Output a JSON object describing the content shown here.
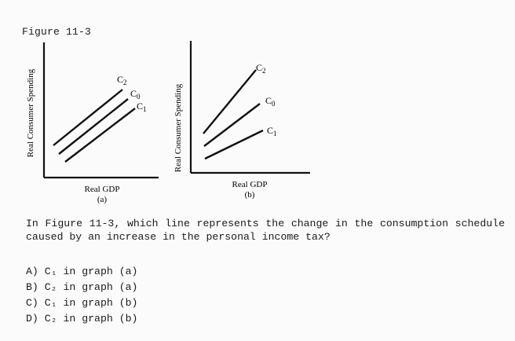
{
  "figure_title": "Figure 11-3",
  "graph_a": {
    "y_label": "Real Consumer Spending",
    "x_label": "Real GDP",
    "panel": "(a)",
    "lines": [
      {
        "label": "C2",
        "base": "C",
        "sub": "2"
      },
      {
        "label": "C0",
        "base": "C",
        "sub": "0"
      },
      {
        "label": "C1",
        "base": "C",
        "sub": "1"
      }
    ]
  },
  "graph_b": {
    "y_label": "Real Consumer Spending",
    "x_label": "Real GDP",
    "panel": "(b)",
    "lines": [
      {
        "label": "C2",
        "base": "C",
        "sub": "2"
      },
      {
        "label": "C0",
        "base": "C",
        "sub": "0"
      },
      {
        "label": "C1",
        "base": "C",
        "sub": "1"
      }
    ]
  },
  "question": "In Figure 11-3, which line represents the change in the consumption schedule caused by an increase in the personal income tax?",
  "choices": [
    "A) C₁ in graph (a)",
    "B) C₂ in graph (a)",
    "C) C₁ in graph (b)",
    "D) C₂ in graph (b)"
  ]
}
